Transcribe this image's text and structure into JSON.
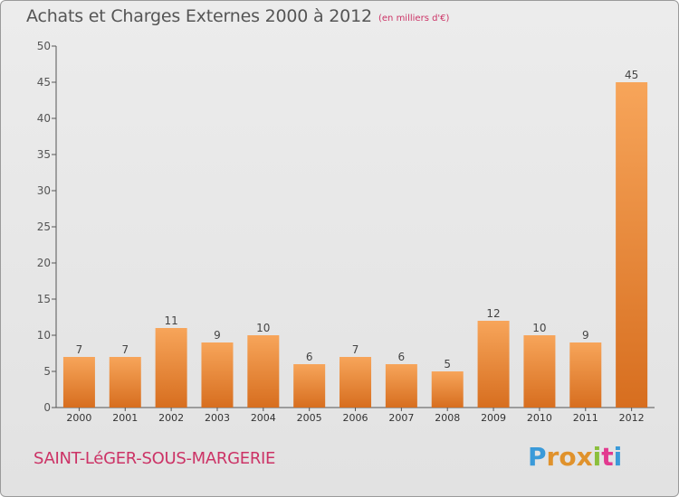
{
  "header": {
    "title": "Achats et Charges Externes 2000 à 2012",
    "unit": "(en milliers d'€)"
  },
  "footer": {
    "commune": "SAINT-LéGER-SOUS-MARGERIE",
    "logo_letters": [
      "P",
      "r",
      "o",
      "x",
      "i",
      "t",
      "i"
    ]
  },
  "colors": {
    "bar_top": "#f7a55a",
    "bar_bottom": "#d76e1f",
    "axis": "#555555",
    "title": "#555555",
    "accent": "#cc3366",
    "logo": [
      "#3a9ad9",
      "#e0922c",
      "#e0922c",
      "#e0922c",
      "#8bbf3c",
      "#e23a8f",
      "#3a9ad9"
    ]
  },
  "chart_data": {
    "type": "bar",
    "title": "Achats et Charges Externes 2000 à 2012",
    "xlabel": "",
    "ylabel": "",
    "categories": [
      "2000",
      "2001",
      "2002",
      "2003",
      "2004",
      "2005",
      "2006",
      "2007",
      "2008",
      "2009",
      "2010",
      "2011",
      "2012"
    ],
    "values": [
      7,
      7,
      11,
      9,
      10,
      6,
      7,
      6,
      5,
      12,
      10,
      9,
      45
    ],
    "ylim": [
      0,
      50
    ],
    "yticks": [
      0,
      5,
      10,
      15,
      20,
      25,
      30,
      35,
      40,
      45,
      50
    ],
    "grid": false,
    "legend": "none"
  }
}
